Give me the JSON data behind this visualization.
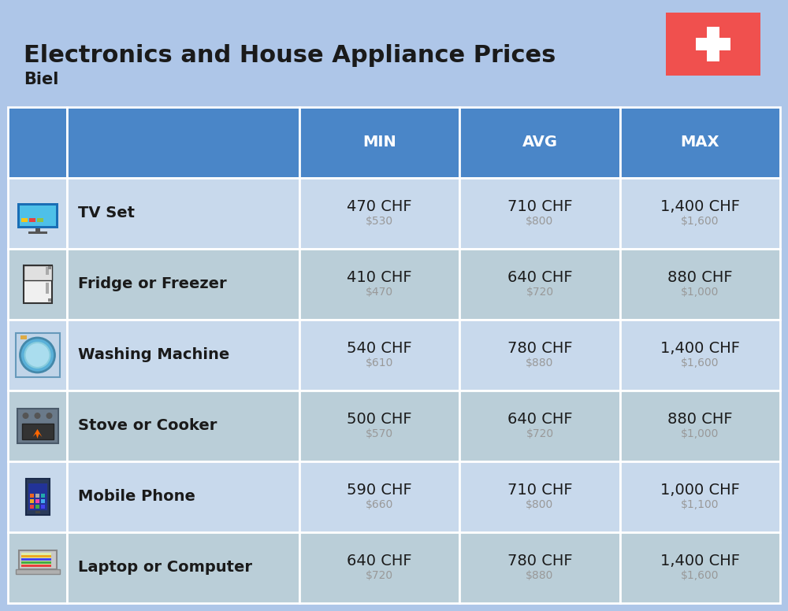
{
  "title": "Electronics and House Appliance Prices",
  "subtitle": "Biel",
  "bg_color": "#aec6e8",
  "header_color": "#4a86c8",
  "header_text_color": "#ffffff",
  "row_alt_colors": [
    "#c8d9ec",
    "#baced8"
  ],
  "col_headers": [
    "MIN",
    "AVG",
    "MAX"
  ],
  "items": [
    {
      "name": "TV Set",
      "min_chf": "470 CHF",
      "min_usd": "$530",
      "avg_chf": "710 CHF",
      "avg_usd": "$800",
      "max_chf": "1,400 CHF",
      "max_usd": "$1,600"
    },
    {
      "name": "Fridge or Freezer",
      "min_chf": "410 CHF",
      "min_usd": "$470",
      "avg_chf": "640 CHF",
      "avg_usd": "$720",
      "max_chf": "880 CHF",
      "max_usd": "$1,000"
    },
    {
      "name": "Washing Machine",
      "min_chf": "540 CHF",
      "min_usd": "$610",
      "avg_chf": "780 CHF",
      "avg_usd": "$880",
      "max_chf": "1,400 CHF",
      "max_usd": "$1,600"
    },
    {
      "name": "Stove or Cooker",
      "min_chf": "500 CHF",
      "min_usd": "$570",
      "avg_chf": "640 CHF",
      "avg_usd": "$720",
      "max_chf": "880 CHF",
      "max_usd": "$1,000"
    },
    {
      "name": "Mobile Phone",
      "min_chf": "590 CHF",
      "min_usd": "$660",
      "avg_chf": "710 CHF",
      "avg_usd": "$800",
      "max_chf": "1,000 CHF",
      "max_usd": "$1,100"
    },
    {
      "name": "Laptop or Computer",
      "min_chf": "640 CHF",
      "min_usd": "$720",
      "avg_chf": "780 CHF",
      "avg_usd": "$880",
      "max_chf": "1,400 CHF",
      "max_usd": "$1,600"
    }
  ],
  "chf_fontsize": 14,
  "usd_fontsize": 10,
  "name_fontsize": 14,
  "header_fontsize": 14,
  "title_fontsize": 22,
  "subtitle_fontsize": 15,
  "flag_color": "#f0504e",
  "white": "#ffffff",
  "text_dark": "#1a1a1a",
  "text_gray": "#999999",
  "border_color": "#ffffff"
}
